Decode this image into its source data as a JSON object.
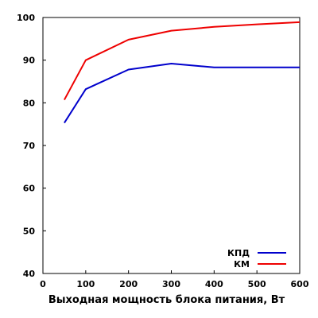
{
  "chart_data": {
    "type": "line",
    "title": "",
    "xlabel": "Выходная мощность блока питания, Вт",
    "ylabel": "",
    "xlim": [
      0,
      600
    ],
    "ylim": [
      40,
      100
    ],
    "x_ticks": [
      0,
      100,
      200,
      300,
      400,
      500,
      600
    ],
    "y_ticks": [
      40,
      50,
      60,
      70,
      80,
      90,
      100
    ],
    "grid": false,
    "legend_position": "bottom-right",
    "series": [
      {
        "name": "КПД",
        "color": "#0000cc",
        "x": [
          50,
          100,
          200,
          300,
          400,
          500,
          600
        ],
        "values": [
          75.3,
          83.2,
          87.8,
          89.2,
          88.3,
          88.3,
          88.3
        ]
      },
      {
        "name": "КМ",
        "color": "#ee0000",
        "x": [
          50,
          100,
          200,
          300,
          400,
          500,
          600
        ],
        "values": [
          80.7,
          90.0,
          94.8,
          96.9,
          97.8,
          98.4,
          98.9
        ]
      }
    ]
  }
}
